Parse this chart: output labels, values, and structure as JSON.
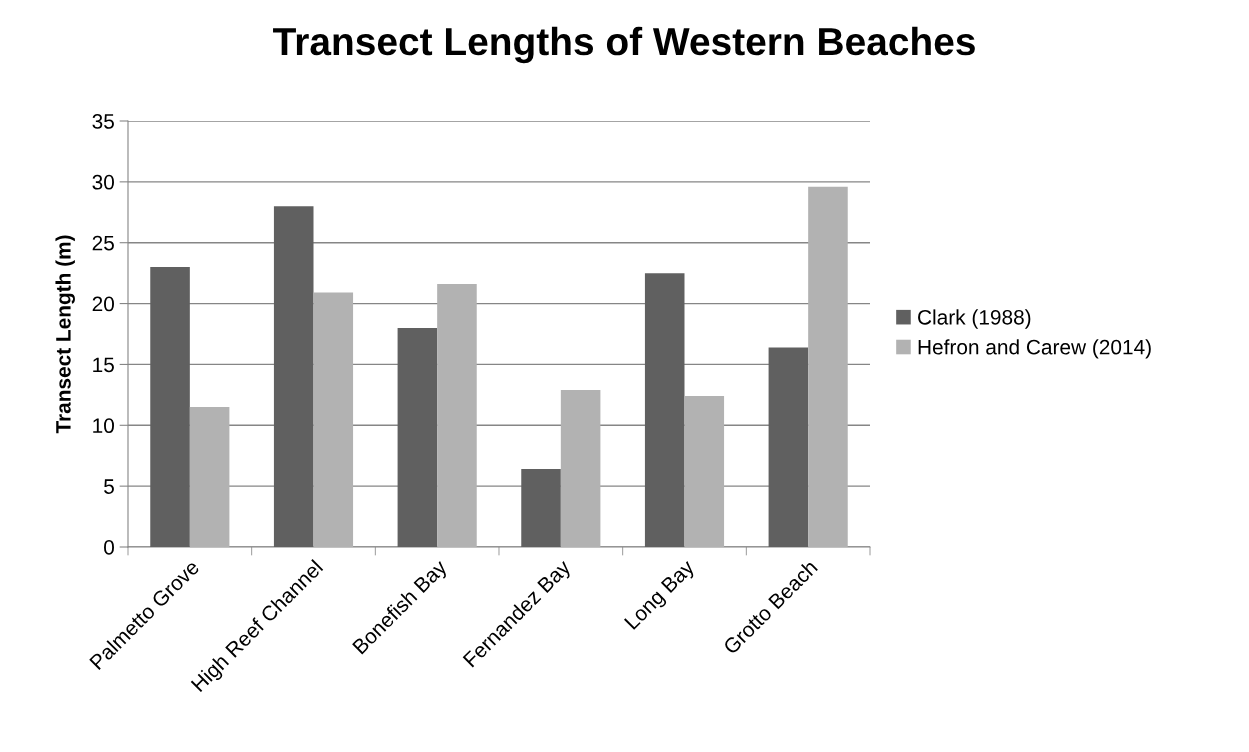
{
  "chart_data": {
    "type": "bar",
    "title": "Transect Lengths of Western Beaches",
    "ylabel": "Transect Length (m)",
    "categories": [
      "Palmetto Grove",
      "High Reef Channel",
      "Bonefish Bay",
      "Fernandez Bay",
      "Long Bay",
      "Grotto Beach"
    ],
    "series": [
      {
        "name": "Clark (1988)",
        "color": "#606060",
        "values": [
          23,
          28,
          18,
          6.4,
          22.5,
          16.4
        ]
      },
      {
        "name": "Hefron and Carew (2014)",
        "color": "#b2b2b2",
        "values": [
          11.5,
          20.9,
          21.6,
          12.9,
          12.4,
          29.6
        ]
      }
    ],
    "ylim": [
      0,
      35
    ],
    "yticks": [
      0,
      5,
      10,
      15,
      20,
      25,
      30,
      35
    ],
    "grid": "y",
    "legend": "right"
  }
}
